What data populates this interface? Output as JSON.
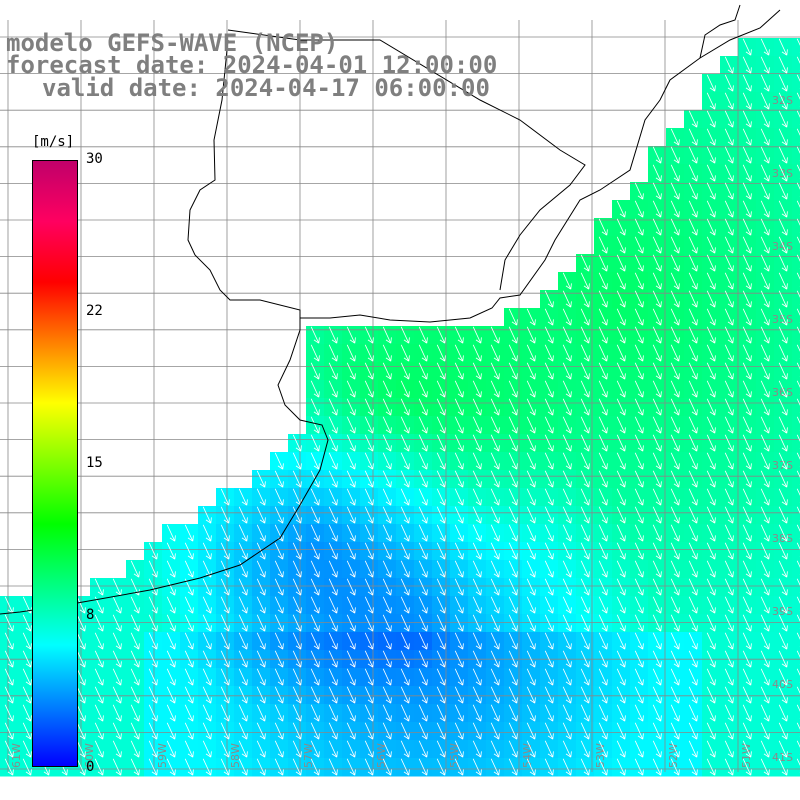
{
  "titles": {
    "line1": "modelo GEFS-WAVE (NCEP)",
    "line2": "forecast date: 2024-04-01 12:00:00",
    "line3": "valid date: 2024-04-17 06:00:00"
  },
  "colorbar": {
    "unit": "[m/s]",
    "ticks": [
      "30",
      "22",
      "15",
      "8",
      "0"
    ],
    "tick_values": [
      30,
      22,
      15,
      8,
      0
    ],
    "colors": [
      "#0000ff",
      "#0080ff",
      "#00ffff",
      "#00ff80",
      "#00ff00",
      "#80ff00",
      "#ffff00",
      "#ff8000",
      "#ff0000",
      "#ff0060",
      "#c0006a"
    ]
  },
  "lat_labels": [
    "32S",
    "33S",
    "34S",
    "35S",
    "36S",
    "37S",
    "38S",
    "39S",
    "40S",
    "41S"
  ],
  "lon_labels": [
    "61W",
    "60W",
    "59W",
    "58W",
    "57W",
    "56W",
    "55W",
    "54W",
    "53W",
    "52W",
    "51W"
  ],
  "wind_direction": "from north-northeast"
}
